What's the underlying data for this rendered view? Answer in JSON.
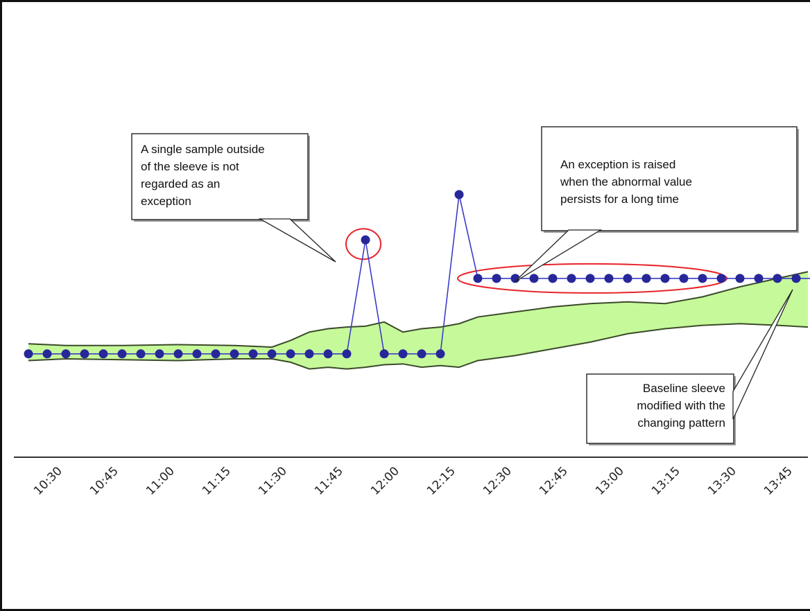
{
  "chart_data": {
    "type": "line",
    "title": "",
    "xlabel": "",
    "ylabel": "",
    "x_ticks": [
      "10:30",
      "10:45",
      "11:00",
      "11:15",
      "11:30",
      "11:45",
      "12:00",
      "12:15",
      "12:30",
      "12:45",
      "13:00",
      "13:15",
      "13:30",
      "13:45"
    ],
    "grid": false,
    "legend": "none",
    "colors": {
      "sleeve_fill": "#c6f99a",
      "sleeve_stroke": "#3a4a2a",
      "series_line": "#3b3bc8",
      "series_marker": "#27279a",
      "highlight": "#e8242a",
      "axis": "#333333"
    },
    "series": [
      {
        "values": [
          [
            "10:20",
            10
          ],
          [
            "10:25",
            10
          ],
          [
            "10:30",
            10
          ],
          [
            "10:35",
            10
          ],
          [
            "10:40",
            10
          ],
          [
            "10:45",
            10
          ],
          [
            "10:50",
            10
          ],
          [
            "10:55",
            10
          ],
          [
            "11:00",
            10
          ],
          [
            "11:05",
            10
          ],
          [
            "11:10",
            10
          ],
          [
            "11:15",
            10
          ],
          [
            "11:20",
            10
          ],
          [
            "11:25",
            10
          ],
          [
            "11:30",
            10
          ],
          [
            "11:35",
            10
          ],
          [
            "11:40",
            10
          ],
          [
            "11:45",
            10
          ],
          [
            "11:50",
            78
          ],
          [
            "11:55",
            10
          ],
          [
            "12:00",
            10
          ],
          [
            "12:05",
            10
          ],
          [
            "12:10",
            10
          ],
          [
            "12:15",
            105
          ],
          [
            "12:20",
            55
          ],
          [
            "12:25",
            55
          ],
          [
            "12:30",
            55
          ],
          [
            "12:35",
            55
          ],
          [
            "12:40",
            55
          ],
          [
            "12:45",
            55
          ],
          [
            "12:50",
            55
          ],
          [
            "12:55",
            55
          ],
          [
            "13:00",
            55
          ],
          [
            "13:05",
            55
          ],
          [
            "13:10",
            55
          ],
          [
            "13:15",
            55
          ],
          [
            "13:20",
            55
          ],
          [
            "13:25",
            55
          ],
          [
            "13:30",
            55
          ],
          [
            "13:35",
            55
          ],
          [
            "13:40",
            55
          ],
          [
            "13:45",
            55
          ],
          [
            "13:50",
            55
          ]
        ]
      }
    ],
    "sleeve": {
      "upper": [
        [
          "10:20",
          16
        ],
        [
          "10:30",
          15
        ],
        [
          "10:45",
          15
        ],
        [
          "11:00",
          15.5
        ],
        [
          "11:15",
          15
        ],
        [
          "11:25",
          14
        ],
        [
          "11:30",
          18
        ],
        [
          "11:35",
          23
        ],
        [
          "11:40",
          25
        ],
        [
          "11:45",
          26
        ],
        [
          "11:50",
          26.5
        ],
        [
          "11:55",
          29
        ],
        [
          "12:00",
          23
        ],
        [
          "12:05",
          25
        ],
        [
          "12:10",
          26
        ],
        [
          "12:15",
          28
        ],
        [
          "12:20",
          32
        ],
        [
          "12:30",
          35
        ],
        [
          "12:40",
          38
        ],
        [
          "12:50",
          40
        ],
        [
          "13:00",
          41
        ],
        [
          "13:10",
          40
        ],
        [
          "13:20",
          44
        ],
        [
          "13:30",
          50
        ],
        [
          "13:40",
          55
        ],
        [
          "13:50",
          59
        ]
      ],
      "lower": [
        [
          "10:20",
          6
        ],
        [
          "10:30",
          7
        ],
        [
          "10:45",
          6.5
        ],
        [
          "11:00",
          6
        ],
        [
          "11:15",
          7
        ],
        [
          "11:25",
          7
        ],
        [
          "11:30",
          5
        ],
        [
          "11:35",
          1
        ],
        [
          "11:40",
          2
        ],
        [
          "11:45",
          1
        ],
        [
          "11:50",
          2
        ],
        [
          "11:55",
          3.5
        ],
        [
          "12:00",
          4
        ],
        [
          "12:05",
          2
        ],
        [
          "12:10",
          3
        ],
        [
          "12:15",
          2
        ],
        [
          "12:20",
          6
        ],
        [
          "12:30",
          9
        ],
        [
          "12:40",
          13
        ],
        [
          "12:50",
          17
        ],
        [
          "13:00",
          22
        ],
        [
          "13:10",
          25
        ],
        [
          "13:20",
          27
        ],
        [
          "13:30",
          28
        ],
        [
          "13:40",
          27
        ],
        [
          "13:50",
          26
        ]
      ]
    },
    "annotations": [
      {
        "lines": [
          "A single sample outside",
          "of the sleeve is not",
          "regarded as an",
          "exception"
        ]
      },
      {
        "lines": [
          "An exception is raised",
          "when the abnormal value",
          "persists for a long time"
        ]
      },
      {
        "lines": [
          "Baseline sleeve",
          "modified with the",
          "changing pattern"
        ]
      }
    ]
  }
}
